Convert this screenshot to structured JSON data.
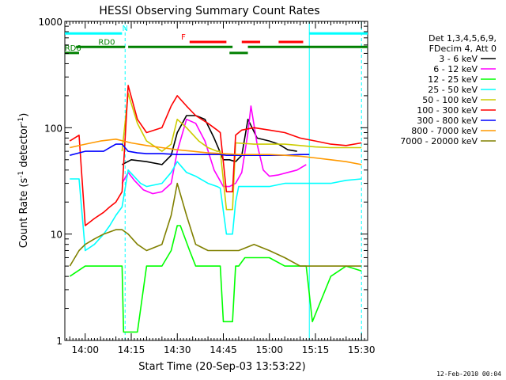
{
  "chart_data": {
    "type": "line",
    "title": "HESSI Observing Summary Count Rates",
    "xlabel": "Start Time (20-Sep-03 13:53:22)",
    "ylabel_parts": [
      "Count Rate (s",
      "-1",
      " detector",
      "-1",
      ")"
    ],
    "yscale": "log",
    "ylim": [
      1,
      1000
    ],
    "xlim": [
      "13:53:22",
      "15:32"
    ],
    "x_ticks": [
      "14:00",
      "14:15",
      "14:30",
      "14:45",
      "15:00",
      "15:15",
      "15:30"
    ],
    "y_ticks": [
      "1",
      "10",
      "100",
      "1000"
    ],
    "grid": false,
    "legend_position": "right",
    "legend_header": [
      "Det 1,3,4,5,6,9,",
      "FDecim 4, Att 0"
    ],
    "series": [
      {
        "name": "3 - 6 keV",
        "color": "#000000",
        "x": [
          "14:12",
          "14:15",
          "14:20",
          "14:25",
          "14:28",
          "14:30",
          "14:33",
          "14:36",
          "14:39",
          "14:42",
          "14:45",
          "14:47",
          "14:49",
          "14:51",
          "14:53",
          "14:56",
          "15:00",
          "15:03",
          "15:06",
          "15:09"
        ],
        "values": [
          45,
          50,
          48,
          45,
          55,
          90,
          130,
          130,
          120,
          80,
          50,
          50,
          48,
          55,
          120,
          80,
          75,
          70,
          62,
          60
        ]
      },
      {
        "name": "6 - 12 keV",
        "color": "#ff00ff",
        "x": [
          "14:12",
          "14:14",
          "14:16",
          "14:19",
          "14:22",
          "14:25",
          "14:28",
          "14:30",
          "14:33",
          "14:36",
          "14:39",
          "14:42",
          "14:45",
          "14:47",
          "14:49",
          "14:51",
          "14:53",
          "14:54",
          "14:56",
          "14:58",
          "15:00",
          "15:03",
          "15:06",
          "15:09",
          "15:12"
        ],
        "values": [
          30,
          38,
          32,
          26,
          24,
          25,
          30,
          60,
          120,
          110,
          75,
          40,
          28,
          28,
          30,
          38,
          90,
          160,
          70,
          40,
          35,
          36,
          38,
          40,
          45
        ]
      },
      {
        "name": "12 - 25 keV",
        "color": "#00ff00",
        "x": [
          "13:55",
          "14:00",
          "14:05",
          "14:10",
          "14:12",
          "14:12.5",
          "14:14",
          "14:17",
          "14:20",
          "14:25",
          "14:28",
          "14:30",
          "14:31",
          "14:34",
          "14:36",
          "14:40",
          "14:43",
          "14:44",
          "14:45",
          "14:48",
          "14:49",
          "14:50",
          "14:52",
          "14:56",
          "15:00",
          "15:05",
          "15:08",
          "15:12",
          "15:14",
          "15:20",
          "15:25",
          "15:30"
        ],
        "values": [
          4,
          5,
          5,
          5,
          5,
          1.2,
          1.2,
          1.2,
          5,
          5,
          7,
          12,
          12,
          7,
          5,
          5,
          5,
          5,
          1.5,
          1.5,
          5,
          5,
          6,
          6,
          6,
          5,
          5,
          5,
          1.5,
          4,
          5,
          4.5
        ]
      },
      {
        "name": "25 - 50 keV",
        "color": "#00ffff",
        "x": [
          "13:55",
          "13:58",
          "14:00",
          "14:03",
          "14:06",
          "14:08",
          "14:10",
          "14:12",
          "14:14",
          "14:18",
          "14:20",
          "14:25",
          "14:28",
          "14:30",
          "14:33",
          "14:36",
          "14:40",
          "14:43",
          "14:44",
          "14:46",
          "14:48",
          "14:49",
          "14:50",
          "14:55",
          "15:00",
          "15:05",
          "15:10",
          "15:12",
          "15:13",
          "15:20",
          "15:25",
          "15:30"
        ],
        "values": [
          33,
          33,
          7,
          8,
          10,
          12,
          15,
          18,
          40,
          30,
          28,
          30,
          38,
          48,
          38,
          35,
          30,
          28,
          27,
          10,
          10,
          20,
          28,
          28,
          28,
          30,
          30,
          30,
          30,
          30,
          32,
          33
        ]
      },
      {
        "name": "50 - 100 keV",
        "color": "#cccc00",
        "x": [
          "14:12",
          "14:14",
          "14:17",
          "14:20",
          "14:25",
          "14:28",
          "14:30",
          "14:33",
          "14:37",
          "14:40",
          "14:43",
          "14:44",
          "14:46",
          "14:48",
          "14:49",
          "14:55",
          "15:00",
          "15:05",
          "15:10",
          "15:15",
          "15:20",
          "15:25",
          "15:30"
        ],
        "values": [
          60,
          210,
          110,
          75,
          60,
          70,
          120,
          100,
          75,
          65,
          60,
          60,
          17,
          17,
          72,
          70,
          70,
          70,
          68,
          66,
          65,
          65,
          65
        ]
      },
      {
        "name": "100 - 300 keV",
        "color": "#ff0000",
        "x": [
          "13:55",
          "13:58",
          "14:00",
          "14:03",
          "14:06",
          "14:08",
          "14:10",
          "14:12",
          "14:14",
          "14:17",
          "14:20",
          "14:25",
          "14:28",
          "14:30",
          "14:33",
          "14:36",
          "14:40",
          "14:43",
          "14:44",
          "14:46",
          "14:48",
          "14:49",
          "14:51",
          "14:55",
          "15:00",
          "15:05",
          "15:10",
          "15:15",
          "15:20",
          "15:25",
          "15:30"
        ],
        "values": [
          75,
          85,
          12,
          14,
          16,
          18,
          20,
          25,
          250,
          120,
          90,
          100,
          160,
          200,
          160,
          130,
          110,
          95,
          90,
          25,
          25,
          85,
          95,
          100,
          95,
          90,
          80,
          75,
          70,
          68,
          72
        ]
      },
      {
        "name": "300 - 800 keV",
        "color": "#0000ff",
        "x": [
          "13:55",
          "13:58",
          "14:00",
          "14:03",
          "14:06",
          "14:08",
          "14:10",
          "14:12",
          "14:14",
          "14:17",
          "14:20",
          "14:25",
          "14:30",
          "14:35",
          "14:40",
          "14:44",
          "14:46",
          "14:48",
          "14:50",
          "14:55",
          "15:00",
          "15:05",
          "15:10",
          "15:13"
        ],
        "values": [
          55,
          58,
          60,
          60,
          60,
          65,
          70,
          70,
          60,
          58,
          57,
          57,
          56,
          56,
          56,
          56,
          55,
          55,
          55,
          55,
          55,
          55,
          56,
          56
        ]
      },
      {
        "name": "800 - 7000 keV",
        "color": "#ff9900",
        "x": [
          "13:55",
          "14:00",
          "14:05",
          "14:10",
          "14:15",
          "14:20",
          "14:25",
          "14:30",
          "14:35",
          "14:40",
          "14:45",
          "14:50",
          "14:55",
          "15:00",
          "15:05",
          "15:10",
          "15:15",
          "15:20",
          "15:25",
          "15:30"
        ],
        "values": [
          65,
          70,
          75,
          78,
          72,
          68,
          65,
          62,
          60,
          58,
          57,
          56,
          56,
          56,
          55,
          54,
          52,
          50,
          48,
          45
        ]
      },
      {
        "name": "7000 - 20000 keV",
        "color": "#808000",
        "x": [
          "13:55",
          "13:58",
          "14:00",
          "14:03",
          "14:06",
          "14:10",
          "14:12",
          "14:14",
          "14:17",
          "14:20",
          "14:25",
          "14:28",
          "14:30",
          "14:33",
          "14:36",
          "14:40",
          "14:44",
          "14:46",
          "14:48",
          "14:50",
          "14:55",
          "15:00",
          "15:05",
          "15:10",
          "15:12",
          "15:14",
          "15:20",
          "15:25",
          "15:30"
        ],
        "values": [
          5,
          7,
          8,
          9,
          10,
          11,
          11,
          10,
          8,
          7,
          8,
          15,
          30,
          15,
          8,
          7,
          7,
          7,
          7,
          7,
          8,
          7,
          6,
          5,
          5,
          5,
          5,
          5,
          5
        ]
      }
    ],
    "annotations": {
      "N": {
        "label": "N",
        "color": "#00ffff",
        "y": 770,
        "segments": [
          [
            "13:53:22",
            "14:12"
          ],
          [
            "15:13",
            "15:32"
          ]
        ]
      },
      "F": {
        "label": "F",
        "color": "#ff0000",
        "y": 640,
        "segments": [
          [
            "14:34",
            "14:46"
          ],
          [
            "14:51",
            "14:57"
          ],
          [
            "15:03",
            "15:11"
          ]
        ]
      },
      "RD0": {
        "label": "RD0",
        "color": "#008000",
        "y": 575,
        "segments": [
          [
            "13:57",
            "14:13"
          ],
          [
            "14:14",
            "14:48"
          ],
          [
            "14:53",
            "15:32"
          ]
        ]
      },
      "RD6": {
        "label": "RD6",
        "color": "#008000",
        "y": 505,
        "segments": [
          [
            "13:53:22",
            "13:58"
          ],
          [
            "14:47",
            "14:53"
          ]
        ]
      }
    },
    "vertical_markers": [
      {
        "x": "14:13",
        "color": "#00ffff",
        "style": "dashed"
      },
      {
        "x": "15:13",
        "color": "#00ffff",
        "style": "solid"
      },
      {
        "x": "15:30",
        "color": "#00ffff",
        "style": "dashed"
      }
    ]
  },
  "footer": {
    "timestamp": "12-Feb-2010 00:04"
  }
}
